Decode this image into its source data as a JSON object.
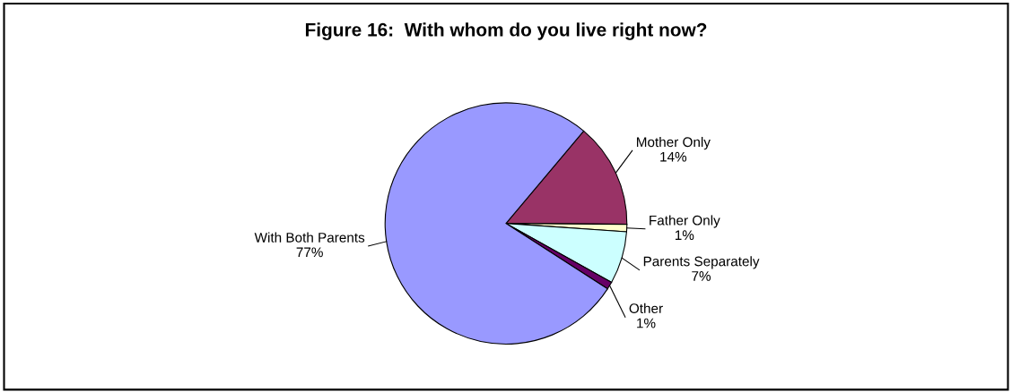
{
  "chart_data": {
    "type": "pie",
    "title": "Figure 16:  With whom do you live right now?",
    "categories": [
      "Mother Only",
      "Father Only",
      "Parents Separately",
      "Other",
      "With Both Parents"
    ],
    "values": [
      14,
      1,
      7,
      1,
      77
    ],
    "value_labels": [
      "14%",
      "1%",
      "7%",
      "1%",
      "77%"
    ],
    "colors": [
      "#993366",
      "#ffffcc",
      "#ccffff",
      "#660066",
      "#9999ff"
    ]
  }
}
